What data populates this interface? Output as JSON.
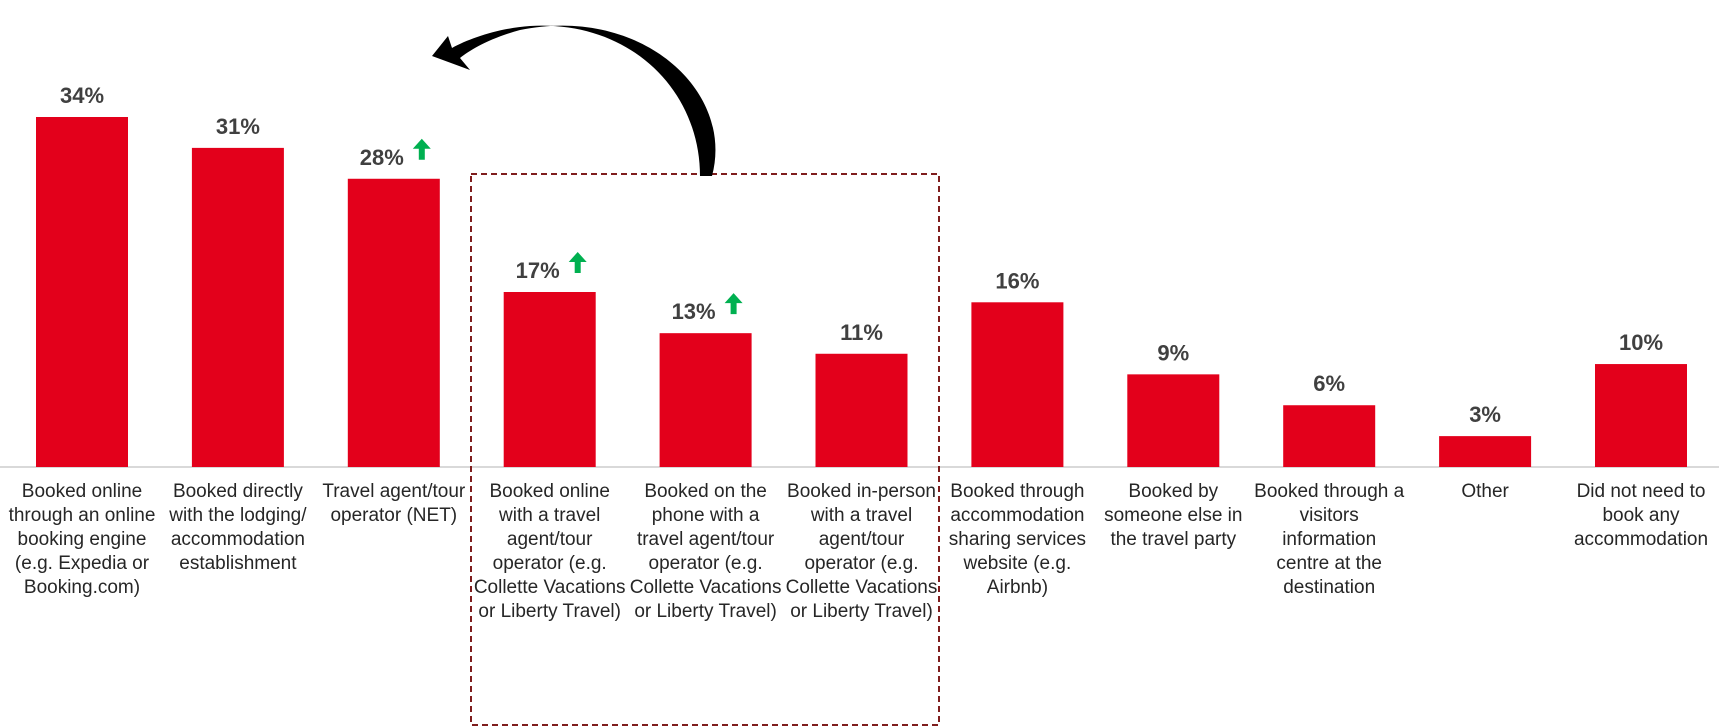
{
  "chart_data": {
    "type": "bar",
    "categories": [
      "Booked online through an online booking engine (e.g. Expedia or Booking.com)",
      "Booked directly with the lodging/ accommodation establishment",
      "Travel agent/tour operator (NET)",
      "Booked online with a travel agent/tour operator (e.g. Collette Vacations or Liberty Travel)",
      "Booked on the phone with a travel agent/tour operator (e.g. Collette Vacations or Liberty Travel)",
      "Booked in-person with a travel agent/tour operator (e.g. Collette Vacations or Liberty Travel)",
      "Booked through accommodation sharing services website (e.g. Airbnb)",
      "Booked by someone else in the travel party",
      "Booked through a visitors information centre at the destination",
      "Other",
      "Did not need to book any accommodation"
    ],
    "values": [
      34,
      31,
      28,
      17,
      13,
      11,
      16,
      9,
      6,
      3,
      10
    ],
    "value_labels": [
      "34%",
      "31%",
      "28%",
      "17%",
      "13%",
      "11%",
      "16%",
      "9%",
      "6%",
      "3%",
      "10%"
    ],
    "significant_increase": [
      false,
      false,
      true,
      true,
      true,
      false,
      false,
      false,
      false,
      false,
      false
    ],
    "color": "#e3001b",
    "increase_color": "#00b050"
  }
}
